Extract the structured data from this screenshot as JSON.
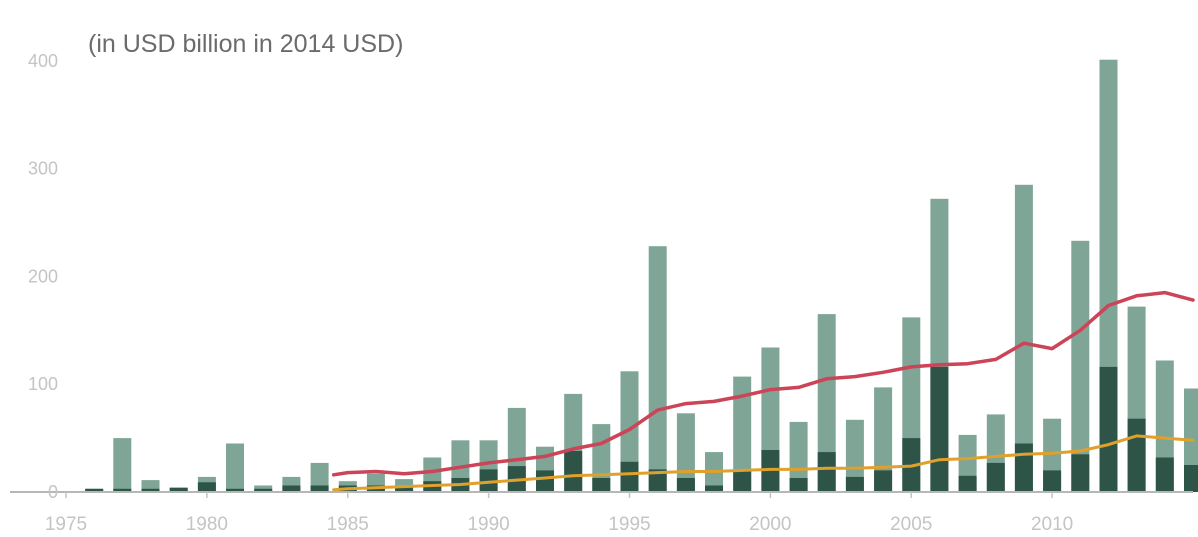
{
  "chart_data": {
    "type": "bar",
    "title": "",
    "subtitle": "(in USD billion in 2014 USD)",
    "xlabel": "",
    "ylabel": "",
    "ylim": [
      0,
      410
    ],
    "xlim": [
      1975,
      2015
    ],
    "yticks": [
      0,
      100,
      200,
      300,
      400
    ],
    "xticks": [
      1975,
      1980,
      1985,
      1990,
      1995,
      2000,
      2005,
      2010
    ],
    "legend": "none",
    "grid": false,
    "years": [
      1976,
      1977,
      1978,
      1979,
      1980,
      1981,
      1982,
      1983,
      1984,
      1985,
      1986,
      1987,
      1988,
      1989,
      1990,
      1991,
      1992,
      1993,
      1994,
      1995,
      1996,
      1997,
      1998,
      1999,
      2000,
      2001,
      2002,
      2003,
      2004,
      2005,
      2006,
      2007,
      2008,
      2009,
      2010,
      2011,
      2012,
      2013,
      2014,
      2015
    ],
    "series": [
      {
        "kind": "bar",
        "color": "#7fa596",
        "values": [
          3,
          50,
          11,
          4,
          14,
          45,
          6,
          14,
          27,
          10,
          17,
          12,
          32,
          48,
          48,
          78,
          42,
          91,
          63,
          112,
          228,
          73,
          37,
          107,
          134,
          65,
          165,
          67,
          97,
          162,
          272,
          53,
          72,
          285,
          68,
          233,
          401,
          172,
          122,
          96
        ]
      },
      {
        "kind": "bar",
        "color": "#2e5448",
        "values": [
          3,
          3,
          3,
          4,
          9,
          3,
          3,
          6,
          6,
          6,
          6,
          6,
          10,
          13,
          21,
          24,
          20,
          38,
          13,
          28,
          21,
          13,
          6,
          19,
          39,
          13,
          37,
          14,
          20,
          50,
          116,
          15,
          27,
          45,
          20,
          35,
          116,
          68,
          32,
          25
        ]
      },
      {
        "kind": "line",
        "color": "#cc4458",
        "x": [
          1984.5,
          1985,
          1986,
          1987,
          1988,
          1989,
          1990,
          1991,
          1992,
          1993,
          1994,
          1995,
          1996,
          1997,
          1998,
          1999,
          2000,
          2001,
          2002,
          2003,
          2004,
          2005,
          2006,
          2007,
          2008,
          2009,
          2010,
          2011,
          2012,
          2013,
          2014,
          2015
        ],
        "values": [
          16,
          18,
          19,
          17,
          19,
          23,
          27,
          30,
          33,
          40,
          45,
          58,
          76,
          82,
          84,
          89,
          95,
          97,
          105,
          107,
          111,
          116,
          118,
          119,
          123,
          138,
          133,
          150,
          173,
          182,
          185,
          178
        ]
      },
      {
        "kind": "line",
        "color": "#e0a02c",
        "x": [
          1984.5,
          1985,
          1986,
          1987,
          1988,
          1989,
          1990,
          1991,
          1992,
          1993,
          1994,
          1995,
          1996,
          1997,
          1998,
          1999,
          2000,
          2001,
          2002,
          2003,
          2004,
          2005,
          2006,
          2007,
          2008,
          2009,
          2010,
          2011,
          2012,
          2013,
          2014,
          2015
        ],
        "values": [
          2,
          3,
          4,
          5,
          6,
          7,
          9,
          11,
          13,
          15,
          16,
          17,
          18,
          19,
          19,
          20,
          21,
          21,
          22,
          22,
          23,
          24,
          30,
          31,
          33,
          35,
          36,
          38,
          44,
          52,
          50,
          48
        ]
      }
    ]
  }
}
